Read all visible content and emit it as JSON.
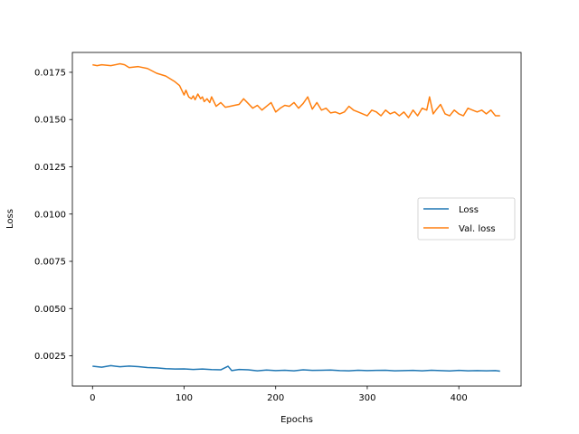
{
  "chart_data": {
    "type": "line",
    "title": "",
    "xlabel": "Epochs",
    "ylabel": "Loss",
    "xlim": [
      -22,
      468
    ],
    "ylim": [
      0.0009,
      0.01855
    ],
    "xticks": [
      0,
      100,
      200,
      300,
      400
    ],
    "xtick_labels": [
      "0",
      "100",
      "200",
      "300",
      "400"
    ],
    "yticks": [
      0.0025,
      0.005,
      0.0075,
      0.01,
      0.0125,
      0.015,
      0.0175
    ],
    "ytick_labels": [
      "0.0025",
      "0.0050",
      "0.0075",
      "0.0100",
      "0.0125",
      "0.0150",
      "0.0175"
    ],
    "grid": false,
    "legend_position": "center-right",
    "series": [
      {
        "name": "Loss",
        "color": "#1f77b4",
        "x": [
          0,
          10,
          20,
          30,
          40,
          50,
          60,
          70,
          80,
          90,
          100,
          110,
          120,
          130,
          140,
          148,
          152,
          160,
          170,
          180,
          190,
          200,
          210,
          220,
          230,
          240,
          250,
          260,
          270,
          280,
          290,
          300,
          310,
          320,
          330,
          340,
          350,
          360,
          370,
          380,
          390,
          400,
          410,
          420,
          430,
          440,
          445
        ],
        "y": [
          0.00195,
          0.0019,
          0.00198,
          0.00192,
          0.00196,
          0.00193,
          0.00188,
          0.00186,
          0.00182,
          0.0018,
          0.00181,
          0.00178,
          0.0018,
          0.00177,
          0.00176,
          0.00195,
          0.00172,
          0.00178,
          0.00176,
          0.00171,
          0.00175,
          0.00172,
          0.00174,
          0.00171,
          0.00176,
          0.00173,
          0.00174,
          0.00175,
          0.00172,
          0.00171,
          0.00174,
          0.00172,
          0.00173,
          0.00174,
          0.00171,
          0.00172,
          0.00173,
          0.00171,
          0.00174,
          0.00172,
          0.0017,
          0.00173,
          0.00171,
          0.00172,
          0.00171,
          0.00172,
          0.00169
        ]
      },
      {
        "name": "Val. loss",
        "color": "#ff7f0e",
        "x": [
          0,
          5,
          10,
          20,
          30,
          35,
          40,
          50,
          60,
          70,
          80,
          90,
          95,
          100,
          102,
          105,
          108,
          110,
          112,
          115,
          118,
          120,
          122,
          125,
          128,
          130,
          135,
          140,
          145,
          150,
          155,
          160,
          165,
          170,
          175,
          180,
          185,
          190,
          195,
          200,
          205,
          210,
          215,
          220,
          225,
          230,
          235,
          240,
          245,
          250,
          255,
          260,
          265,
          270,
          275,
          280,
          285,
          290,
          295,
          300,
          305,
          310,
          315,
          320,
          325,
          330,
          335,
          340,
          345,
          350,
          355,
          360,
          365,
          368,
          372,
          375,
          380,
          385,
          390,
          395,
          400,
          405,
          410,
          415,
          420,
          425,
          430,
          435,
          440,
          445
        ],
        "y": [
          0.0179,
          0.01785,
          0.0179,
          0.01785,
          0.01795,
          0.0179,
          0.01775,
          0.0178,
          0.0177,
          0.01745,
          0.0173,
          0.017,
          0.0168,
          0.0163,
          0.01655,
          0.0162,
          0.0161,
          0.01625,
          0.01605,
          0.01635,
          0.0161,
          0.0162,
          0.01595,
          0.0161,
          0.0159,
          0.0162,
          0.0157,
          0.0159,
          0.01565,
          0.0157,
          0.01575,
          0.0158,
          0.0161,
          0.01585,
          0.0156,
          0.01575,
          0.0155,
          0.0157,
          0.0159,
          0.0154,
          0.0156,
          0.01575,
          0.0157,
          0.0159,
          0.0156,
          0.01585,
          0.0162,
          0.01555,
          0.0159,
          0.0155,
          0.0156,
          0.01535,
          0.0154,
          0.0153,
          0.0154,
          0.0157,
          0.0155,
          0.0154,
          0.0153,
          0.0152,
          0.0155,
          0.0154,
          0.0152,
          0.0155,
          0.0153,
          0.0154,
          0.0152,
          0.0154,
          0.0151,
          0.0155,
          0.0152,
          0.0156,
          0.0155,
          0.0162,
          0.0153,
          0.0155,
          0.0158,
          0.0153,
          0.0152,
          0.0155,
          0.0153,
          0.0152,
          0.0156,
          0.0155,
          0.0154,
          0.0155,
          0.0153,
          0.0155,
          0.0152,
          0.0152
        ]
      }
    ]
  }
}
